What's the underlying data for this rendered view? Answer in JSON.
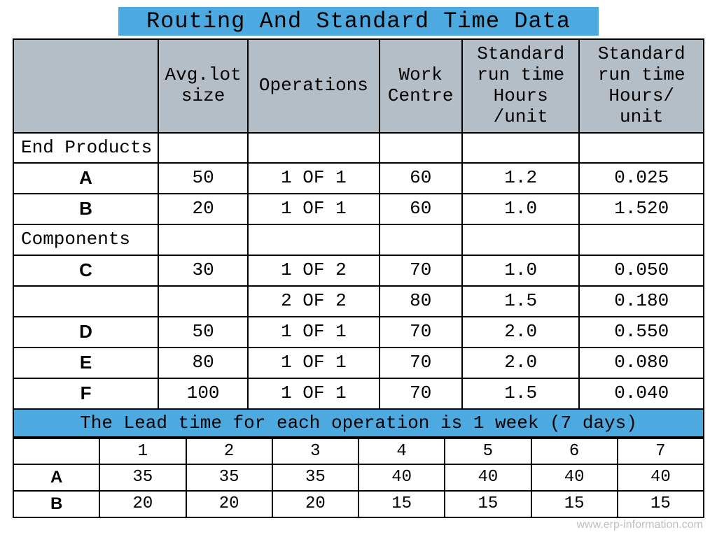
{
  "title": "Routing And Standard Time Data",
  "colors": {
    "highlight": "#4daae0",
    "header_bg": "#b4bec6",
    "border": "#000000",
    "background": "#ffffff",
    "footer_text": "#bfbfbf"
  },
  "typography": {
    "mono_family": "Courier New",
    "title_fontsize": 32,
    "cell_fontsize": 26,
    "rowhead_fontsize": 32
  },
  "main_table": {
    "columns": [
      "",
      "Avg.lot size",
      "Operations",
      "Work Centre",
      "Standard run time Hours /unit",
      "Standard run time Hours/ unit"
    ],
    "header_html": [
      "",
      "Avg.lot\nsize",
      "Operations",
      "Work\nCentre",
      "Standard\nrun time\nHours\n/unit",
      "Standard\nrun time\nHours/\nunit"
    ],
    "sections": [
      {
        "label": "End Products",
        "rows": [
          {
            "name": "A",
            "lot": "50",
            "op": "1 OF 1",
            "wc": "60",
            "rt1": "1.2",
            "rt2": "0.025"
          },
          {
            "name": "B",
            "lot": "20",
            "op": "1 OF 1",
            "wc": "60",
            "rt1": "1.0",
            "rt2": "1.520"
          }
        ]
      },
      {
        "label": "Components",
        "rows": [
          {
            "name": "C",
            "lot": "30",
            "op": "1 OF 2",
            "wc": "70",
            "rt1": "1.0",
            "rt2": "0.050"
          },
          {
            "name": "",
            "lot": "",
            "op": "2 OF 2",
            "wc": "80",
            "rt1": "1.5",
            "rt2": "0.180"
          },
          {
            "name": "D",
            "lot": "50",
            "op": "1 OF 1",
            "wc": "70",
            "rt1": "2.0",
            "rt2": "0.550"
          },
          {
            "name": "E",
            "lot": "80",
            "op": "1 OF 1",
            "wc": "70",
            "rt1": "2.0",
            "rt2": "0.080"
          },
          {
            "name": "F",
            "lot": "100",
            "op": "1 OF 1",
            "wc": "70",
            "rt1": "1.5",
            "rt2": "0.040"
          }
        ]
      }
    ]
  },
  "note": "The Lead time  for each operation is 1 week (7 days)",
  "schedule_table": {
    "columns": [
      "",
      "1",
      "2",
      "3",
      "4",
      "5",
      "6",
      "7"
    ],
    "rows": [
      {
        "name": "A",
        "vals": [
          "35",
          "35",
          "35",
          "40",
          "40",
          "40",
          "40"
        ]
      },
      {
        "name": "B",
        "vals": [
          "20",
          "20",
          "20",
          "15",
          "15",
          "15",
          "15"
        ]
      }
    ]
  },
  "footer": "www.erp-information.com"
}
